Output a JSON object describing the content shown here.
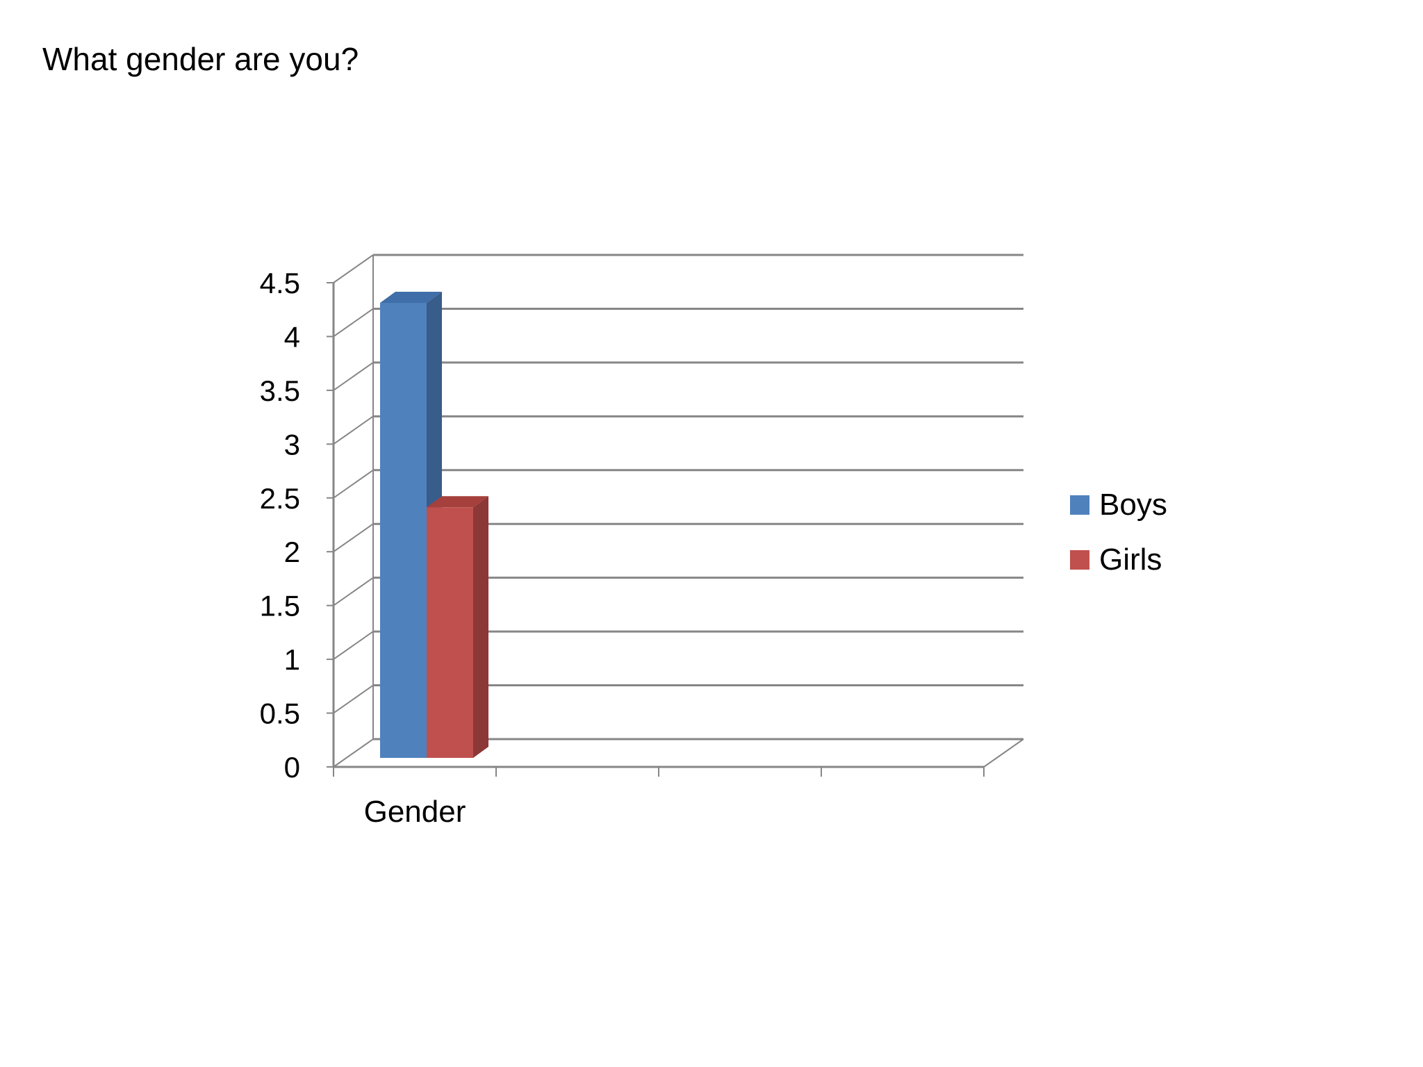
{
  "slide": {
    "title": "What gender are you?"
  },
  "chart_data": {
    "type": "bar",
    "style": "3d-clustered-column",
    "title": "",
    "categories": [
      "Gender"
    ],
    "series": [
      {
        "name": "Boys",
        "values": [
          4.3
        ],
        "color": "#4F81BD",
        "side_color": "#385D8A",
        "top_color": "#3F6EA8"
      },
      {
        "name": "Girls",
        "values": [
          2.4
        ],
        "color": "#C0504D",
        "side_color": "#8C3836",
        "top_color": "#A5403D"
      }
    ],
    "ylim": [
      0,
      4.5
    ],
    "y_ticks": [
      "0",
      "0.5",
      "1",
      "1.5",
      "2",
      "2.5",
      "3",
      "3.5",
      "4",
      "4.5"
    ],
    "xlabel": "",
    "ylabel": "",
    "grid": true,
    "legend_position": "right",
    "colors": {
      "gridline": "#868686",
      "axis": "#868686"
    }
  }
}
